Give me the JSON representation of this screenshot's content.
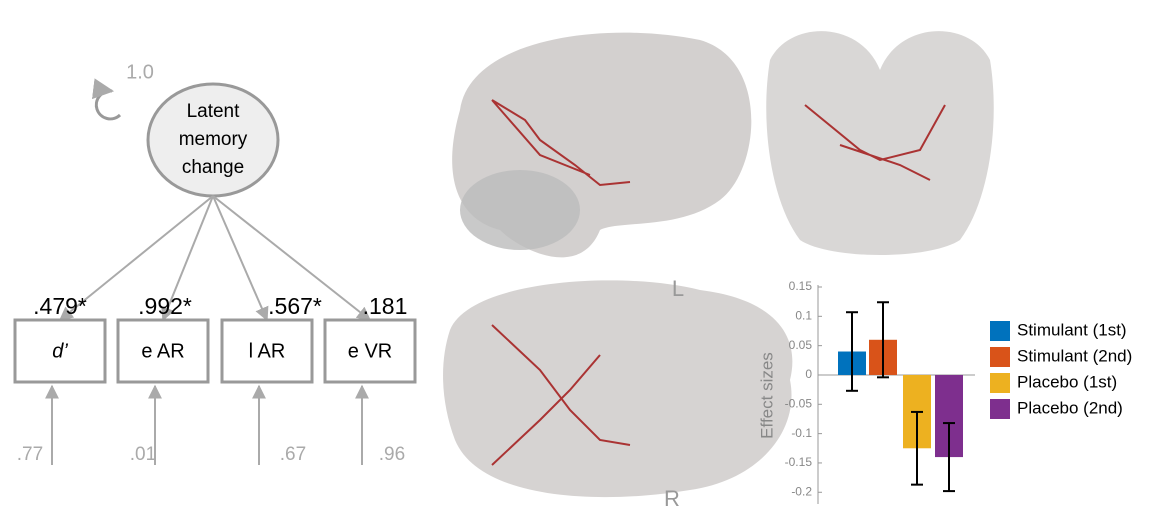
{
  "diagram": {
    "latent": {
      "label_lines": [
        "Latent",
        "memory",
        "change"
      ],
      "variance": "1.0"
    },
    "indicators": [
      {
        "label": "d’",
        "loading": ".479*",
        "residual": ".77"
      },
      {
        "label": "e AR",
        "loading": ".992*",
        "residual": ".01"
      },
      {
        "label": "l AR",
        "loading": ".567*",
        "residual": ".67"
      },
      {
        "label": "e VR",
        "loading": ".181",
        "residual": ".96"
      }
    ]
  },
  "brain_labels": {
    "left": "L",
    "right": "R"
  },
  "chart_data": {
    "type": "bar",
    "y_label": "Effect sizes",
    "ylim": [
      -0.22,
      0.15
    ],
    "yticks": [
      0.15,
      0.1,
      0.05,
      0,
      -0.05,
      -0.1,
      -0.15,
      -0.2
    ],
    "series": [
      {
        "name": "Stimulant (1st)",
        "color": "#0072bd",
        "values": [
          0.04
        ],
        "errors": [
          0.067
        ]
      },
      {
        "name": "Stimulant (2nd)",
        "color": "#d95319",
        "values": [
          0.06
        ],
        "errors": [
          0.064
        ]
      },
      {
        "name": "Placebo (1st)",
        "color": "#edb120",
        "values": [
          -0.125
        ],
        "errors": [
          0.062
        ]
      },
      {
        "name": "Placebo (2nd)",
        "color": "#7e2f8e",
        "values": [
          -0.14
        ],
        "errors": [
          0.058
        ]
      }
    ]
  }
}
